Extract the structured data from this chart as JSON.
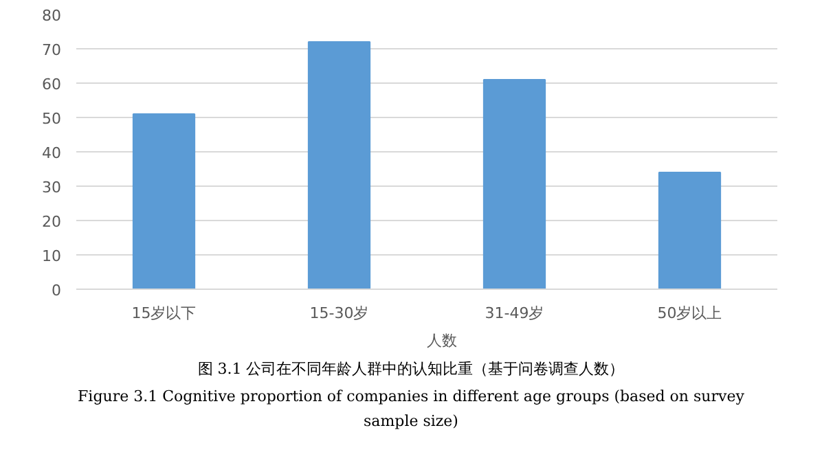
{
  "chart_data": {
    "type": "bar",
    "categories": [
      "15岁以下",
      "15-30岁",
      "31-49岁",
      "50岁以上"
    ],
    "series": [
      {
        "name": "人数",
        "color": "#5b9bd5",
        "values": [
          51,
          72,
          61,
          34
        ]
      }
    ],
    "ylim": [
      0,
      80
    ],
    "yticks": [
      0,
      10,
      20,
      30,
      40,
      50,
      60,
      70,
      80
    ],
    "grid": "y",
    "legend": "bottom",
    "annotations": [
      "图 3.1 公司在不同年龄人群中的认知比重（基于问卷调查人数）",
      "Figure 3.1 Cognitive proportion of companies in different age groups (based on survey",
      "sample size)"
    ]
  }
}
